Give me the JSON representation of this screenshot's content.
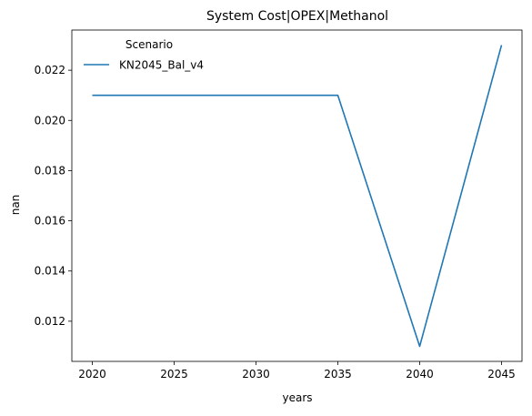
{
  "chart_data": {
    "type": "line",
    "title": "System Cost|OPEX|Methanol",
    "xlabel": "years",
    "ylabel": "nan",
    "x": [
      2020,
      2025,
      2030,
      2035,
      2040,
      2045
    ],
    "series": [
      {
        "name": "KN2045_Bal_v4",
        "color": "#1f77b4",
        "values": [
          0.021,
          0.021,
          0.021,
          0.021,
          0.011,
          0.023
        ]
      }
    ],
    "xticks": [
      2020,
      2025,
      2030,
      2035,
      2040,
      2045
    ],
    "yticks": [
      0.012,
      0.014,
      0.016,
      0.018,
      0.02,
      0.022
    ],
    "xlim": [
      2018.75,
      2046.25
    ],
    "ylim": [
      0.0104,
      0.0236
    ],
    "grid": false,
    "legend": {
      "title": "Scenario",
      "placement": "top-left"
    }
  }
}
